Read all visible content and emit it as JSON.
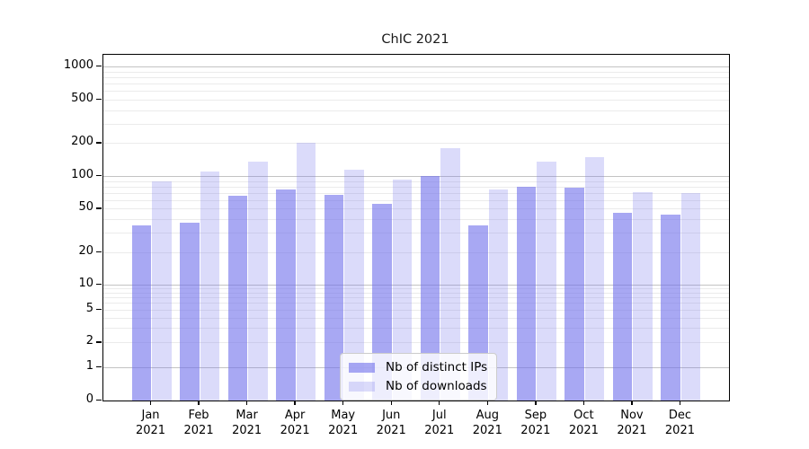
{
  "chart_data": {
    "type": "bar",
    "title": "ChIC 2021",
    "yscale": "symlog",
    "grid": "on",
    "categories": [
      "Jan",
      "Feb",
      "Mar",
      "Apr",
      "May",
      "Jun",
      "Jul",
      "Aug",
      "Sep",
      "Oct",
      "Nov",
      "Dec"
    ],
    "category_year": "2021",
    "series": [
      {
        "name": "Nb of distinct IPs",
        "color": "rgba(110,110,235,0.6)",
        "values": [
          35,
          37,
          66,
          75,
          67,
          55,
          100,
          35,
          80,
          78,
          46,
          44
        ]
      },
      {
        "name": "Nb of downloads",
        "color": "rgba(110,110,235,0.25)",
        "values": [
          90,
          110,
          135,
          200,
          115,
          93,
          180,
          75,
          135,
          148,
          71,
          69
        ]
      }
    ],
    "ylim": [
      0,
      1000
    ],
    "yticks": [
      0,
      1,
      2,
      5,
      10,
      20,
      50,
      100,
      200,
      500,
      1000
    ],
    "legend_position": "lower-center-inside",
    "colors": {
      "major_grid": "#c3c3c3",
      "minor_grid": "#ebebeb",
      "axis": "#000000",
      "background": "#ffffff"
    }
  }
}
